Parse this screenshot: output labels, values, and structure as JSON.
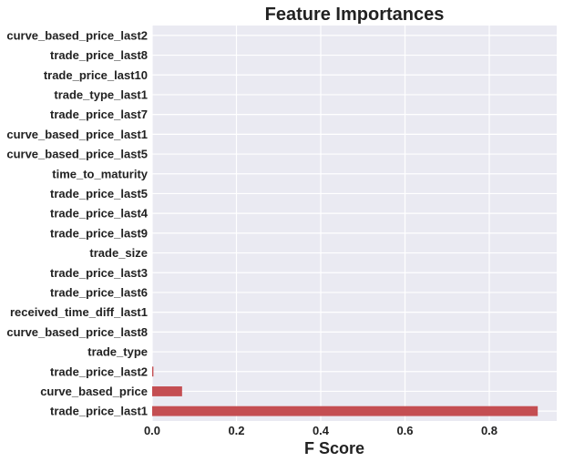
{
  "chart_data": {
    "type": "bar",
    "orientation": "horizontal",
    "title": "Feature Importances",
    "xlabel": "F Score",
    "ylabel": "",
    "xlim": [
      0,
      0.96
    ],
    "xticks": [
      0.0,
      0.2,
      0.4,
      0.6,
      0.8
    ],
    "xtick_labels": [
      "0.0",
      "0.2",
      "0.4",
      "0.6",
      "0.8"
    ],
    "grid": true,
    "background": "#eaeaf2",
    "bar_color": "#c44e52",
    "categories": [
      "curve_based_price_last2",
      "trade_price_last8",
      "trade_price_last10",
      "trade_type_last1",
      "trade_price_last7",
      "curve_based_price_last1",
      "curve_based_price_last5",
      "time_to_maturity",
      "trade_price_last5",
      "trade_price_last4",
      "trade_price_last9",
      "trade_size",
      "trade_price_last3",
      "trade_price_last6",
      "received_time_diff_last1",
      "curve_based_price_last8",
      "trade_type",
      "trade_price_last2",
      "curve_based_price",
      "trade_price_last1"
    ],
    "values": [
      0.0,
      0.0,
      0.0,
      0.0,
      0.0,
      0.0,
      0.0,
      0.0,
      0.0,
      0.0,
      0.0,
      0.0,
      0.0,
      0.0,
      0.0,
      0.0,
      0.0,
      0.003,
      0.071,
      0.915
    ]
  }
}
